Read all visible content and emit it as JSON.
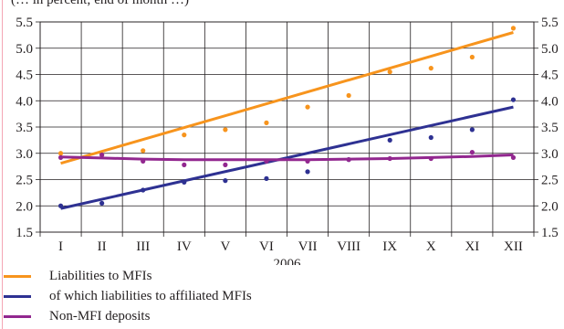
{
  "subtitle": "(… in percent; end of month …)",
  "chart_data": {
    "type": "line",
    "title": "",
    "xlabel": "2006",
    "ylabel": "",
    "categories": [
      "I",
      "II",
      "III",
      "IV",
      "V",
      "VI",
      "VII",
      "VIII",
      "IX",
      "X",
      "XI",
      "XII"
    ],
    "ylim": [
      1.5,
      5.5
    ],
    "yticks": [
      "1.5",
      "2.0",
      "2.5",
      "3.0",
      "3.5",
      "4.0",
      "4.5",
      "5.0",
      "5.5"
    ],
    "grid": true,
    "legend_position": "bottom",
    "series": [
      {
        "name": "Liabilities to MFIs",
        "color": "#f7941d",
        "points": [
          3.0,
          2.97,
          3.05,
          3.35,
          3.45,
          3.58,
          3.88,
          4.1,
          4.55,
          4.62,
          4.83,
          5.38
        ],
        "trend": [
          2.81,
          5.3
        ]
      },
      {
        "name": "of which liabilities to affiliated MFIs",
        "color": "#2e3192",
        "points": [
          2.0,
          2.05,
          2.3,
          2.45,
          2.48,
          2.52,
          2.65,
          2.88,
          3.25,
          3.3,
          3.45,
          4.02
        ],
        "trend": [
          1.95,
          3.88
        ]
      },
      {
        "name": "Non-MFI deposits",
        "color": "#92278f",
        "points": [
          2.92,
          2.97,
          2.85,
          2.78,
          2.78,
          2.85,
          2.85,
          2.88,
          2.9,
          2.9,
          3.02,
          2.92
        ],
        "trend_points": [
          2.93,
          2.91,
          2.89,
          2.88,
          2.88,
          2.88,
          2.88,
          2.89,
          2.9,
          2.92,
          2.94,
          2.97
        ]
      }
    ]
  }
}
